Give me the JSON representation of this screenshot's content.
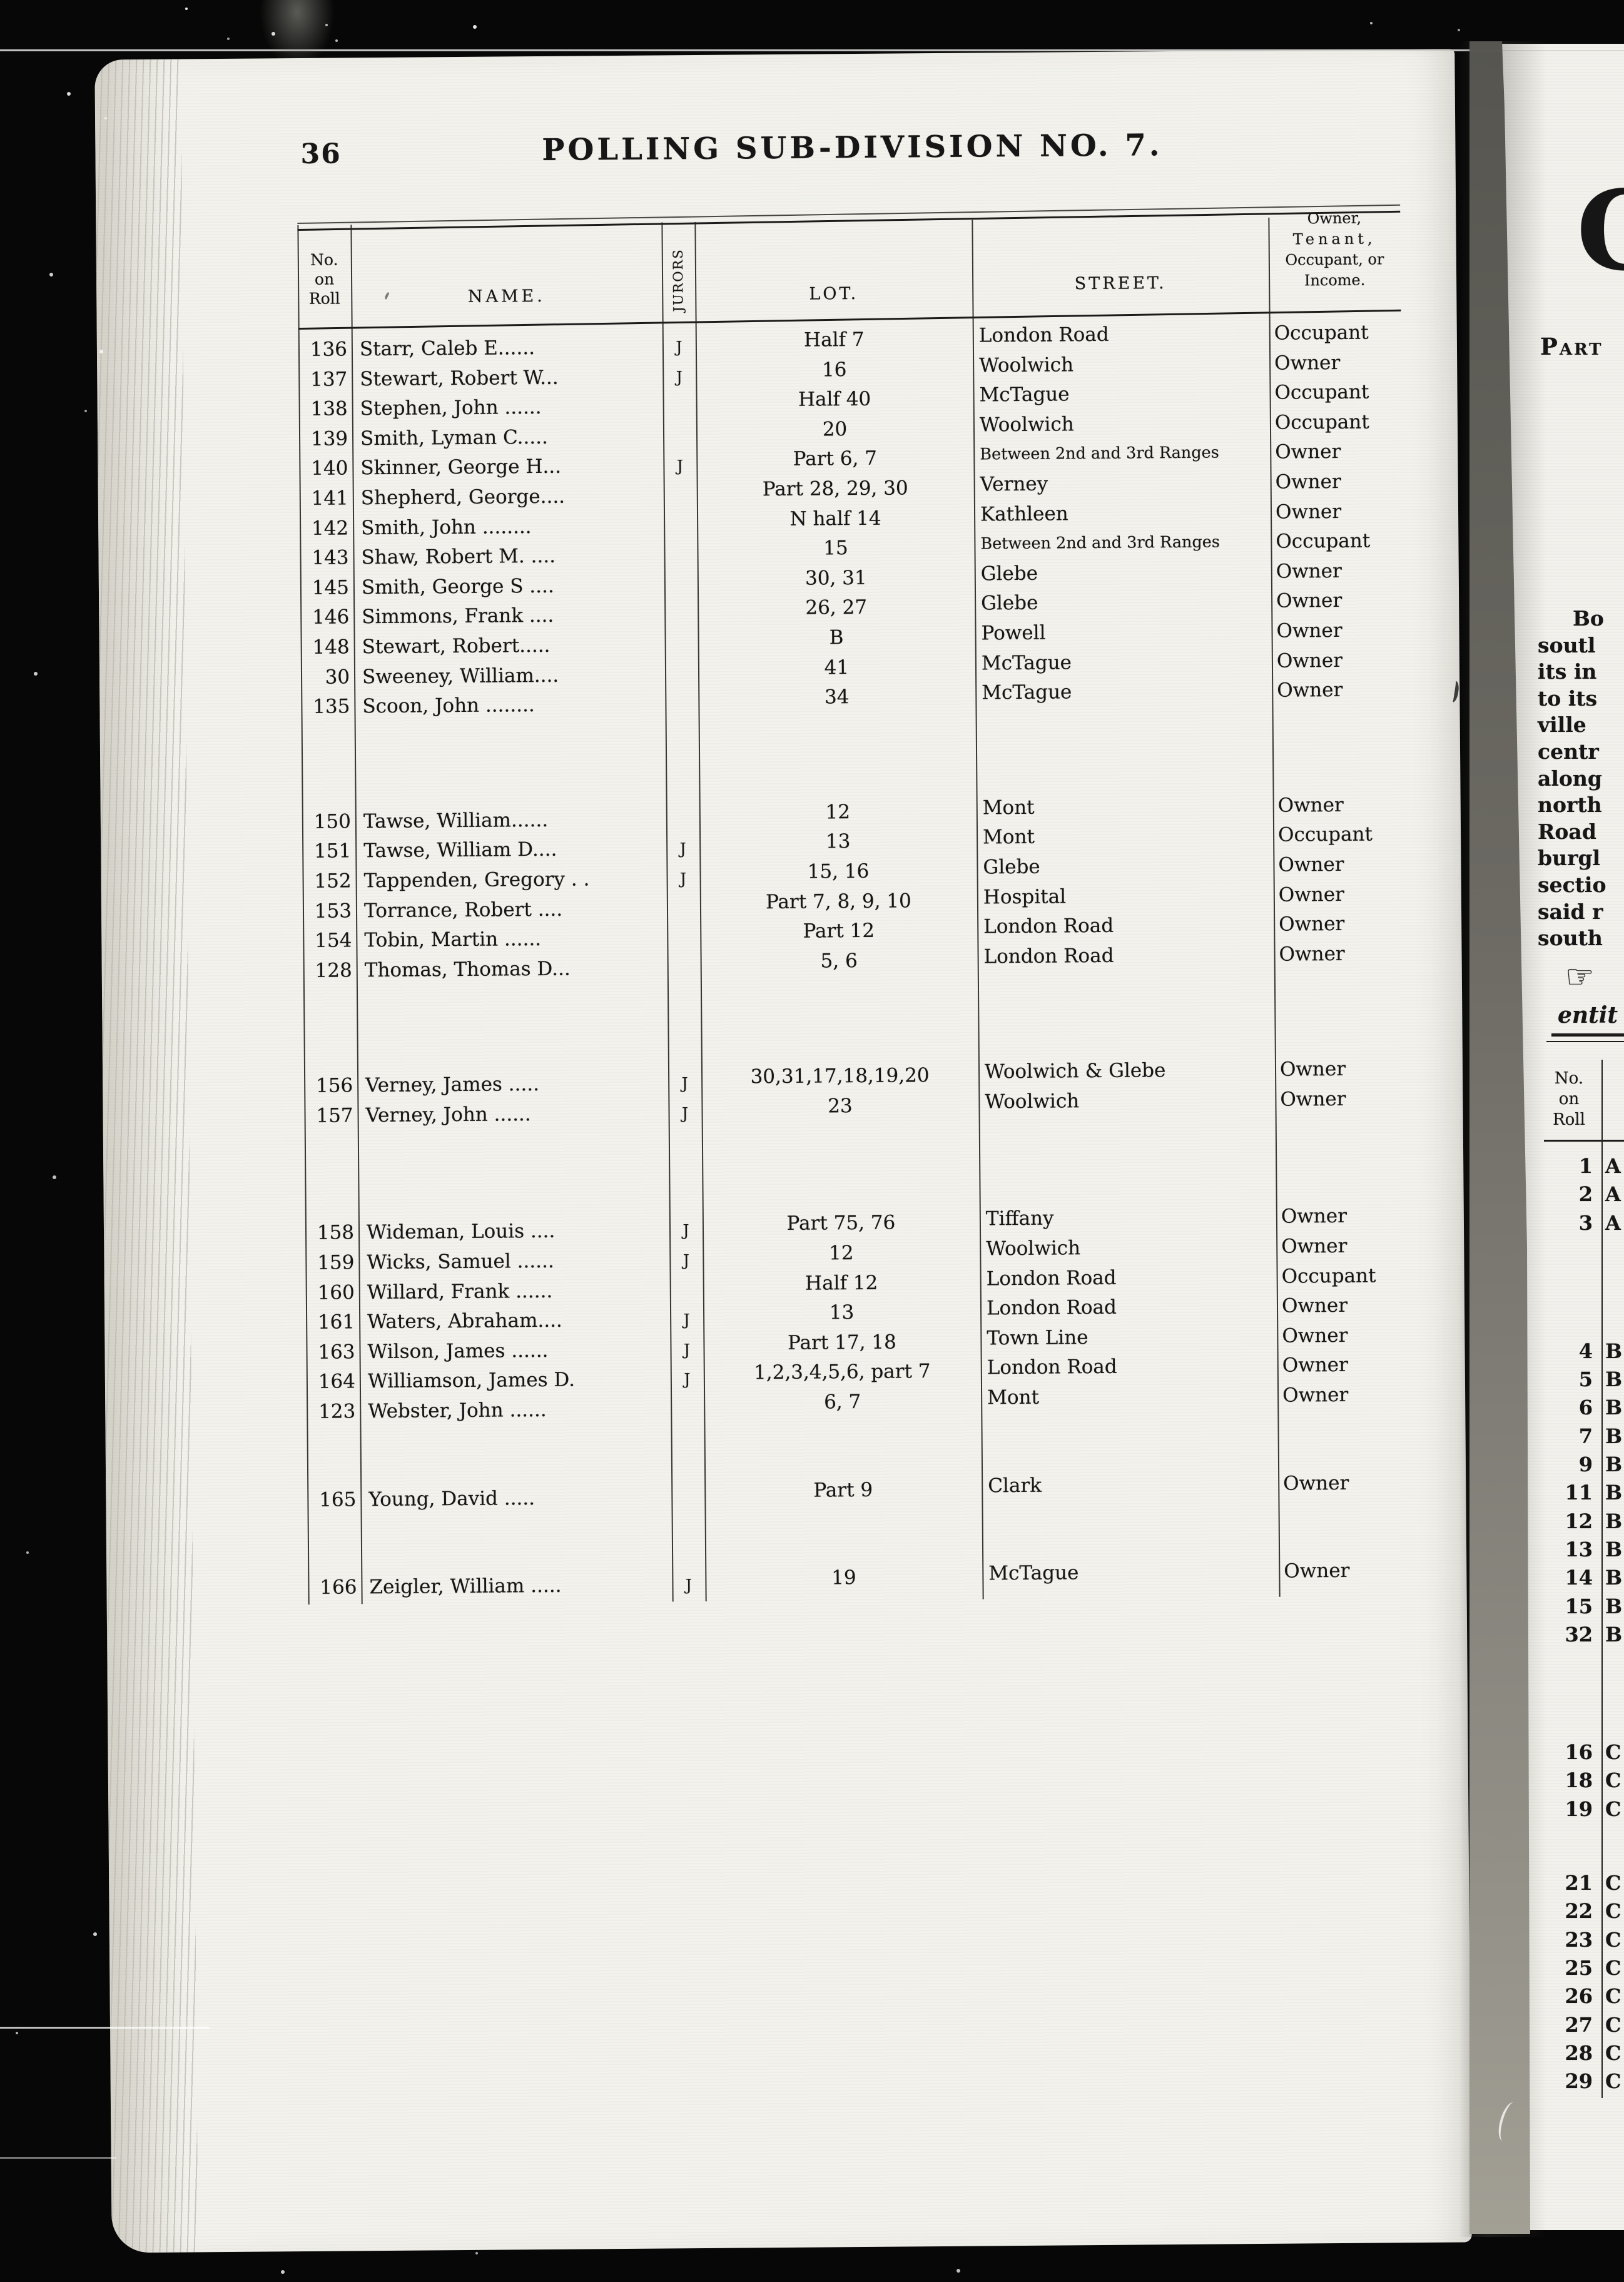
{
  "colors": {
    "background": "#070707",
    "page": "#f3f2ec",
    "ink": "#161616",
    "gutter": "#6c6a63"
  },
  "left_page": {
    "page_number": "36",
    "title": "POLLING SUB-DIVISION NO. 7.",
    "table": {
      "header": {
        "no_lines": [
          "No.",
          "on",
          "Roll"
        ],
        "name": "NAME.",
        "jurors": "JURORS",
        "lot": "LOT.",
        "street": "STREET.",
        "status_lines": [
          "Owner,",
          "Tenant,",
          "Occupant, or",
          "Income."
        ]
      },
      "groups": [
        {
          "rows": [
            {
              "no": "136",
              "name": "Starr, Caleb E......",
              "jurors": "J",
              "lot": "Half 7",
              "street": "London Road",
              "status": "Occupant"
            },
            {
              "no": "137",
              "name": "Stewart, Robert W...",
              "jurors": "J",
              "lot": "16",
              "street": "Woolwich",
              "status": "Owner"
            },
            {
              "no": "138",
              "name": "Stephen, John ......",
              "jurors": "",
              "lot": "Half 40",
              "street": "McTague",
              "status": "Occupant"
            },
            {
              "no": "139",
              "name": "Smith, Lyman C.....",
              "jurors": "",
              "lot": "20",
              "street": "Woolwich",
              "status": "Occupant"
            },
            {
              "no": "140",
              "name": "Skinner, George H...",
              "jurors": "J",
              "lot": "Part 6, 7",
              "street": "Between 2nd and 3rd Ranges",
              "status": "Owner"
            },
            {
              "no": "141",
              "name": "Shepherd, George....",
              "jurors": "",
              "lot": "Part 28, 29, 30",
              "street": "Verney",
              "status": "Owner"
            },
            {
              "no": "142",
              "name": "Smith, John ........",
              "jurors": "",
              "lot": "N half 14",
              "street": "Kathleen",
              "status": "Owner"
            },
            {
              "no": "143",
              "name": "Shaw, Robert M. ....",
              "jurors": "",
              "lot": "15",
              "street": "Between 2nd and 3rd Ranges",
              "status": "Occupant"
            },
            {
              "no": "145",
              "name": "Smith, George S ....",
              "jurors": "",
              "lot": "30, 31",
              "street": "Glebe",
              "status": "Owner"
            },
            {
              "no": "146",
              "name": "Simmons, Frank ....",
              "jurors": "",
              "lot": "26, 27",
              "street": "Glebe",
              "status": "Owner"
            },
            {
              "no": "148",
              "name": "Stewart, Robert.....",
              "jurors": "",
              "lot": "B",
              "street": "Powell",
              "status": "Owner"
            },
            {
              "no": "30",
              "name": "Sweeney, William....",
              "jurors": "",
              "lot": "41",
              "street": "McTague",
              "status": "Owner"
            },
            {
              "no": "135",
              "name": "Scoon, John ........",
              "jurors": "",
              "lot": "34",
              "street": "McTague",
              "status": "Owner"
            }
          ]
        },
        {
          "rows": [
            {
              "no": "150",
              "name": "Tawse, William......",
              "jurors": "",
              "lot": "12",
              "street": "Mont",
              "status": "Owner"
            },
            {
              "no": "151",
              "name": "Tawse, William D....",
              "jurors": "J",
              "lot": "13",
              "street": "Mont",
              "status": "Occupant"
            },
            {
              "no": "152",
              "name": "Tappenden, Gregory . .",
              "jurors": "J",
              "lot": "15, 16",
              "street": "Glebe",
              "status": "Owner"
            },
            {
              "no": "153",
              "name": "Torrance, Robert ....",
              "jurors": "",
              "lot": "Part 7, 8, 9, 10",
              "street": "Hospital",
              "status": "Owner"
            },
            {
              "no": "154",
              "name": "Tobin, Martin ......",
              "jurors": "",
              "lot": "Part 12",
              "street": "London Road",
              "status": "Owner"
            },
            {
              "no": "128",
              "name": "Thomas, Thomas D...",
              "jurors": "",
              "lot": "5, 6",
              "street": "London Road",
              "status": "Owner"
            }
          ]
        },
        {
          "rows": [
            {
              "no": "156",
              "name": "Verney, James .....",
              "jurors": "J",
              "lot": "30,31,17,18,19,20",
              "street": "Woolwich & Glebe",
              "status": "Owner"
            },
            {
              "no": "157",
              "name": "Verney, John  ......",
              "jurors": "J",
              "lot": "23",
              "street": "Woolwich",
              "status": "Owner"
            }
          ]
        },
        {
          "rows": [
            {
              "no": "158",
              "name": "Wideman, Louis ....",
              "jurors": "J",
              "lot": "Part 75, 76",
              "street": "Tiffany",
              "status": "Owner"
            },
            {
              "no": "159",
              "name": "Wicks, Samuel ......",
              "jurors": "J",
              "lot": "12",
              "street": "Woolwich",
              "status": "Owner"
            },
            {
              "no": "160",
              "name": "Willard, Frank ......",
              "jurors": "",
              "lot": "Half 12",
              "street": "London Road",
              "status": "Occupant"
            },
            {
              "no": "161",
              "name": "Waters, Abraham....",
              "jurors": "J",
              "lot": "13",
              "street": "London Road",
              "status": "Owner"
            },
            {
              "no": "163",
              "name": "Wilson, James ......",
              "jurors": "J",
              "lot": "Part 17, 18",
              "street": "Town Line",
              "status": "Owner"
            },
            {
              "no": "164",
              "name": "Williamson, James D.",
              "jurors": "J",
              "lot": "1,2,3,4,5,6, part 7",
              "street": "London Road",
              "status": "Owner"
            },
            {
              "no": "123",
              "name": "Webster, John ......",
              "jurors": "",
              "lot": "6, 7",
              "street": "Mont",
              "status": "Owner"
            }
          ]
        },
        {
          "rows": [
            {
              "no": "165",
              "name": "Young, David  .....",
              "jurors": "",
              "lot": "Part 9",
              "street": "Clark",
              "status": "Owner"
            }
          ]
        },
        {
          "rows": [
            {
              "no": "166",
              "name": "Zeigler, William .....",
              "jurors": "J",
              "lot": "19",
              "street": "McTague",
              "status": "Owner"
            }
          ]
        }
      ]
    }
  },
  "right_page": {
    "drop_cap": "C",
    "section_label": "Part",
    "paragraph_lines": [
      "Bo",
      "soutl",
      "its in",
      "to its",
      "ville",
      "centr",
      "along",
      "north",
      "Road",
      "burgl",
      "sectio",
      "said r",
      "south"
    ],
    "manicule": "☞",
    "italic_fragment": "entit",
    "roll_header_lines": [
      "No.",
      "on",
      "Roll"
    ],
    "groups": [
      {
        "entries": [
          {
            "no": "1",
            "letter": "A"
          },
          {
            "no": "2",
            "letter": "A"
          },
          {
            "no": "3",
            "letter": "A"
          }
        ]
      },
      {
        "entries": [
          {
            "no": "4",
            "letter": "B"
          },
          {
            "no": "5",
            "letter": "B"
          },
          {
            "no": "6",
            "letter": "B"
          },
          {
            "no": "7",
            "letter": "B"
          },
          {
            "no": "9",
            "letter": "B"
          },
          {
            "no": "11",
            "letter": "B"
          },
          {
            "no": "12",
            "letter": "B"
          },
          {
            "no": "13",
            "letter": "B"
          },
          {
            "no": "14",
            "letter": "B"
          },
          {
            "no": "15",
            "letter": "B"
          },
          {
            "no": "32",
            "letter": "B"
          }
        ]
      },
      {
        "entries": [
          {
            "no": "16",
            "letter": "C"
          },
          {
            "no": "18",
            "letter": "C"
          },
          {
            "no": "19",
            "letter": "C"
          }
        ]
      },
      {
        "entries": [
          {
            "no": "21",
            "letter": "C"
          },
          {
            "no": "22",
            "letter": "C"
          },
          {
            "no": "23",
            "letter": "C"
          },
          {
            "no": "25",
            "letter": "C"
          },
          {
            "no": "26",
            "letter": "C"
          },
          {
            "no": "27",
            "letter": "C"
          },
          {
            "no": "28",
            "letter": "C"
          },
          {
            "no": "29",
            "letter": "C"
          }
        ]
      }
    ]
  }
}
